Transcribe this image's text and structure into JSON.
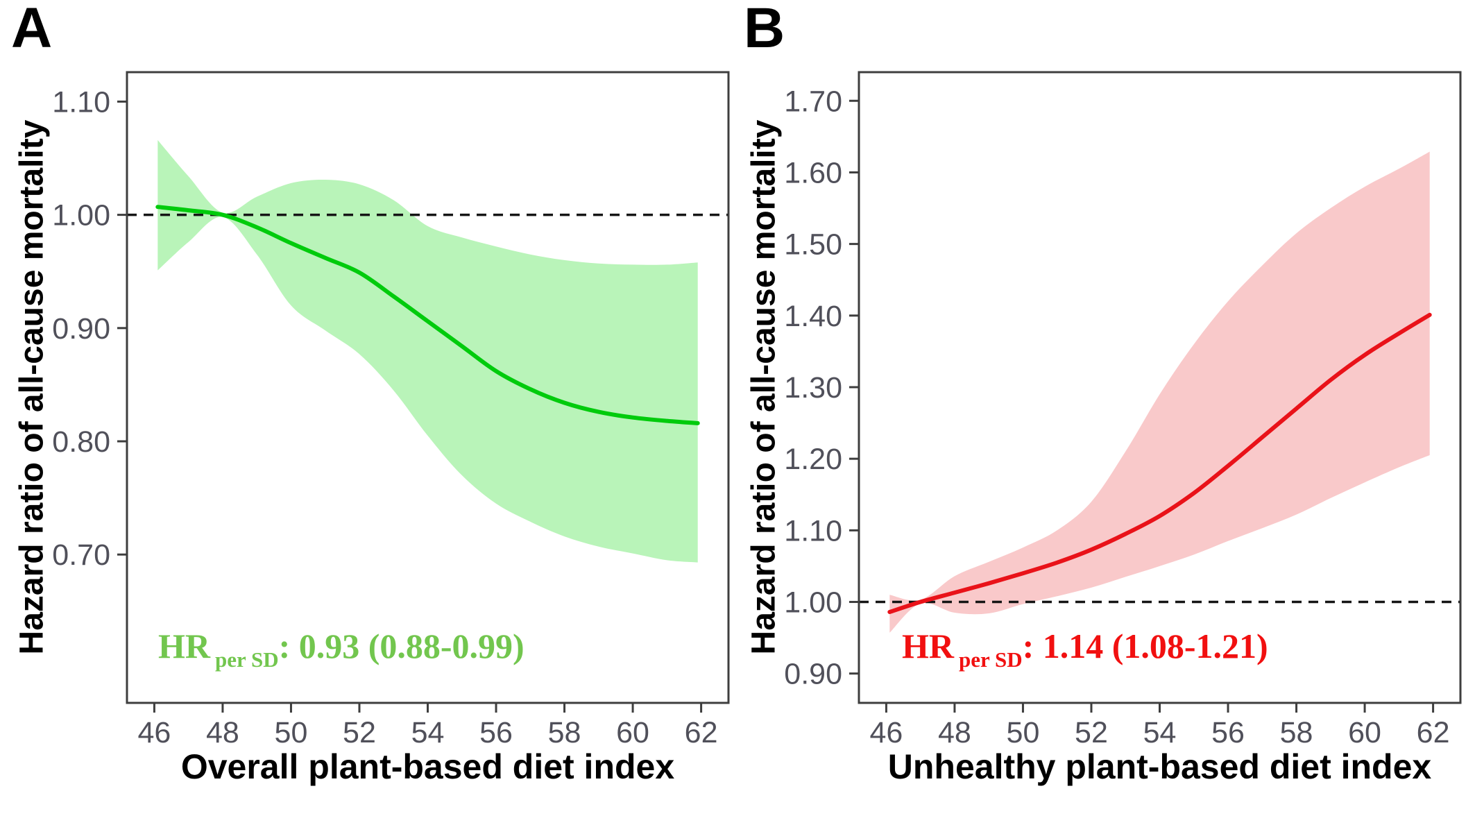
{
  "panels": [
    {
      "letter": "A",
      "y_title": "Hazard ratio of all-cause mortality",
      "x_title": "Overall plant-based diet index",
      "annotation": {
        "prefix": "HR",
        "subscript": "per SD",
        "value": ": 0.93 (0.88-0.99)"
      }
    },
    {
      "letter": "B",
      "y_title": "Hazard ratio of all-cause mortality",
      "x_title": "Unhealthy plant-based diet index",
      "annotation": {
        "prefix": "HR",
        "subscript": "per SD",
        "value": ": 1.14 (1.08-1.21)"
      }
    }
  ],
  "chart_data": [
    {
      "type": "line",
      "panel": "A",
      "title": "",
      "xlabel": "Overall plant-based diet index",
      "ylabel": "Hazard ratio of all-cause mortality",
      "x_ticks": [
        46,
        48,
        50,
        52,
        54,
        56,
        58,
        60,
        62
      ],
      "y_ticks": [
        0.7,
        0.8,
        0.9,
        1.0,
        1.1
      ],
      "y_tick_labels": [
        "0.70",
        "0.80",
        "0.90",
        "1.00",
        "1.10"
      ],
      "xlim": [
        45.2,
        62.8
      ],
      "ylim": [
        0.569,
        1.126
      ],
      "grid": false,
      "reference_line_y": 1.0,
      "annotation_text": "HR per SD: 0.93 (0.88-0.99)",
      "colors": {
        "line": "#00cb0c",
        "band": "#b9f4b9",
        "annotation_text": "#72c64e"
      },
      "series": [
        {
          "name": "estimate",
          "x": [
            46.1,
            47,
            48,
            49,
            50,
            51,
            52,
            53,
            54,
            55,
            56,
            57,
            58,
            59,
            60,
            61,
            61.9
          ],
          "values": [
            1.007,
            1.004,
            1.0,
            0.989,
            0.975,
            0.962,
            0.949,
            0.928,
            0.906,
            0.884,
            0.862,
            0.846,
            0.834,
            0.826,
            0.821,
            0.818,
            0.816
          ]
        },
        {
          "name": "ci_upper",
          "x": [
            46.1,
            47,
            48,
            49,
            50,
            51,
            52,
            53,
            54,
            55,
            56,
            57,
            58,
            59,
            60,
            61,
            61.9
          ],
          "values": [
            1.066,
            1.034,
            1.002,
            1.016,
            1.028,
            1.031,
            1.027,
            1.013,
            0.99,
            0.98,
            0.972,
            0.965,
            0.96,
            0.957,
            0.956,
            0.956,
            0.958
          ]
        },
        {
          "name": "ci_lower",
          "x": [
            46.1,
            47,
            48,
            49,
            50,
            51,
            52,
            53,
            54,
            55,
            56,
            57,
            58,
            59,
            60,
            61,
            61.9
          ],
          "values": [
            0.951,
            0.976,
            0.998,
            0.965,
            0.92,
            0.898,
            0.877,
            0.845,
            0.805,
            0.77,
            0.745,
            0.729,
            0.716,
            0.707,
            0.701,
            0.695,
            0.693
          ]
        }
      ]
    },
    {
      "type": "line",
      "panel": "B",
      "title": "",
      "xlabel": "Unhealthy plant-based diet index",
      "ylabel": "Hazard ratio of all-cause mortality",
      "x_ticks": [
        46,
        48,
        50,
        52,
        54,
        56,
        58,
        60,
        62
      ],
      "y_ticks": [
        0.9,
        1.0,
        1.1,
        1.2,
        1.3,
        1.4,
        1.5,
        1.6,
        1.7
      ],
      "y_tick_labels": [
        "0.90",
        "1.00",
        "1.10",
        "1.20",
        "1.30",
        "1.40",
        "1.50",
        "1.60",
        "1.70"
      ],
      "xlim": [
        45.2,
        62.8
      ],
      "ylim": [
        0.859,
        1.74
      ],
      "grid": false,
      "reference_line_y": 1.0,
      "annotation_text": "HR per SD: 1.14 (1.08-1.21)",
      "colors": {
        "line": "#e91219",
        "band": "#f9c9ca",
        "annotation_text": "#f11010"
      },
      "series": [
        {
          "name": "estimate",
          "x": [
            46.1,
            47,
            48,
            49,
            50,
            51,
            52,
            53,
            54,
            55,
            56,
            57,
            58,
            59,
            60,
            61,
            61.9
          ],
          "values": [
            0.986,
            1.0,
            1.013,
            1.026,
            1.04,
            1.055,
            1.073,
            1.095,
            1.12,
            1.152,
            1.19,
            1.23,
            1.27,
            1.31,
            1.345,
            1.375,
            1.401
          ]
        },
        {
          "name": "ci_upper",
          "x": [
            46.1,
            47,
            48,
            49,
            50,
            51,
            52,
            53,
            54,
            55,
            56,
            57,
            58,
            59,
            60,
            61,
            61.9
          ],
          "values": [
            1.01,
            1.003,
            1.036,
            1.056,
            1.076,
            1.1,
            1.14,
            1.21,
            1.29,
            1.36,
            1.42,
            1.47,
            1.515,
            1.55,
            1.58,
            1.605,
            1.629
          ]
        },
        {
          "name": "ci_lower",
          "x": [
            46.1,
            47,
            48,
            49,
            50,
            51,
            52,
            53,
            54,
            55,
            56,
            57,
            58,
            59,
            60,
            61,
            61.9
          ],
          "values": [
            0.957,
            0.998,
            0.985,
            0.984,
            0.997,
            1.008,
            1.02,
            1.035,
            1.05,
            1.066,
            1.085,
            1.103,
            1.122,
            1.145,
            1.167,
            1.188,
            1.205
          ]
        }
      ]
    }
  ]
}
